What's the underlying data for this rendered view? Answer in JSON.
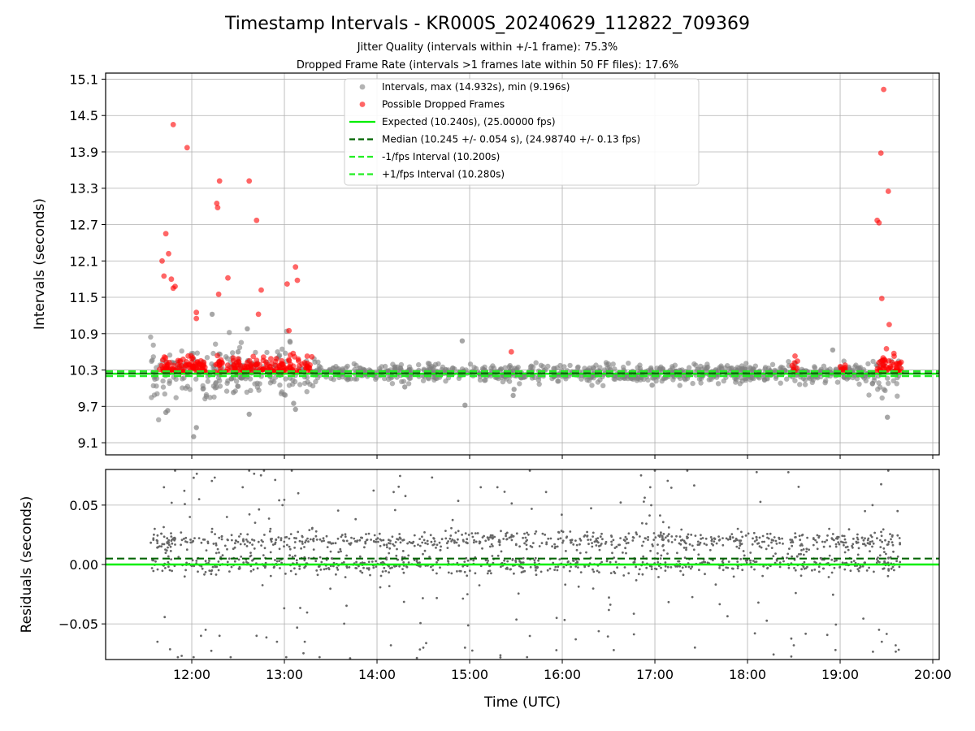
{
  "chart_data": [
    {
      "type": "scatter",
      "title": "Timestamp Intervals - KR000S_20240629_112822_709369",
      "subtitle_1": "Jitter Quality (intervals within +/-1 frame): 75.3%",
      "subtitle_2": "Dropped Frame Rate (intervals >1 frames late within 50 FF files): 17.6%",
      "ylabel": "Intervals (seconds)",
      "xlim_hours": [
        11.07,
        20.07
      ],
      "ylim": [
        8.9,
        15.2
      ],
      "yticks": [
        9.1,
        9.7,
        10.3,
        10.9,
        11.5,
        12.1,
        12.7,
        13.3,
        13.9,
        14.5,
        15.1
      ],
      "ytick_labels": [
        "9.1",
        "9.7",
        "10.3",
        "10.9",
        "11.5",
        "12.1",
        "12.7",
        "13.3",
        "13.9",
        "14.5",
        "15.1"
      ],
      "xticks_hours": [
        12,
        13,
        14,
        15,
        16,
        17,
        18,
        19,
        20
      ],
      "grid": true,
      "legend_position": "top-center",
      "legend": [
        {
          "label": "Intervals, max (14.932s), min (9.196s)",
          "kind": "marker",
          "color": "#808080"
        },
        {
          "label": "Possible Dropped Frames",
          "kind": "marker",
          "color": "#ff0000"
        },
        {
          "label": "Expected (10.240s), (25.00000 fps)",
          "kind": "line",
          "color": "#00ee00",
          "dash": false
        },
        {
          "label": "Median (10.245 +/- 0.054 s), (24.98740 +/- 0.13 fps)",
          "kind": "line",
          "color": "#006400",
          "dash": true
        },
        {
          "label": "-1/fps Interval (10.200s)",
          "kind": "line",
          "color": "#22ee22",
          "dash": true
        },
        {
          "label": "+1/fps Interval (10.280s)",
          "kind": "line",
          "color": "#22ee22",
          "dash": true
        }
      ],
      "reference_lines": {
        "expected": 10.24,
        "median": 10.245,
        "minus_one_fps": 10.2,
        "plus_one_fps": 10.28
      },
      "series": [
        {
          "name": "Possible Dropped Frames",
          "color": "#ff0000",
          "x_hours": [
            11.68,
            11.7,
            11.72,
            11.75,
            11.78,
            11.8,
            11.8,
            11.82,
            11.95,
            12.05,
            12.05,
            12.27,
            12.28,
            12.29,
            12.3,
            12.39,
            12.62,
            12.7,
            12.72,
            12.75,
            13.03,
            13.05,
            13.12,
            13.14,
            15.45,
            19.4,
            19.42,
            19.44,
            19.45,
            19.47,
            19.5,
            19.52,
            19.53
          ],
          "y": [
            12.1,
            11.85,
            12.55,
            12.22,
            11.8,
            14.35,
            11.65,
            11.68,
            13.97,
            11.25,
            11.15,
            13.05,
            12.98,
            11.55,
            13.42,
            11.82,
            13.42,
            12.77,
            11.22,
            11.62,
            11.72,
            10.95,
            12.0,
            11.78,
            10.6,
            12.77,
            12.73,
            13.88,
            11.48,
            14.93,
            10.65,
            13.25,
            11.05
          ]
        },
        {
          "name": "Intervals, max (14.932s), min (9.196s)",
          "color": "#808080",
          "x_hours": [
            11.72,
            11.74,
            12.02,
            12.05,
            12.22,
            12.45,
            12.5,
            12.6,
            12.62,
            13.1,
            13.12,
            14.3,
            14.92,
            14.95,
            15.47,
            15.48,
            16.97,
            18.92,
            19.51
          ],
          "y": [
            9.6,
            9.63,
            9.2,
            9.35,
            11.22,
            9.93,
            10.6,
            10.98,
            9.57,
            9.75,
            9.65,
            10.02,
            10.78,
            9.72,
            9.88,
            9.98,
            10.05,
            10.63,
            9.52
          ]
        }
      ]
    },
    {
      "type": "scatter",
      "ylabel": "Residuals (seconds)",
      "xlabel": "Time (UTC)",
      "xlim_hours": [
        11.07,
        20.07
      ],
      "ylim": [
        -0.08,
        0.08
      ],
      "yticks": [
        -0.05,
        0.0,
        0.05
      ],
      "ytick_labels": [
        "−0.05",
        "0.00",
        "0.05"
      ],
      "xticks_hours": [
        12,
        13,
        14,
        15,
        16,
        17,
        18,
        19,
        20
      ],
      "xtick_labels": [
        "12:00",
        "13:00",
        "14:00",
        "15:00",
        "16:00",
        "17:00",
        "18:00",
        "19:00",
        "20:00"
      ],
      "grid": true,
      "reference_lines": {
        "zero": 0.0,
        "median_offset": 0.005
      },
      "series": [
        {
          "name": "residuals",
          "color": "#666666",
          "x_hours": [
            11.6,
            11.63,
            11.7,
            11.78,
            11.82,
            11.85,
            11.92,
            11.98,
            12.02,
            12.08,
            12.1,
            12.15,
            12.22,
            12.3,
            12.38,
            12.42,
            12.48,
            12.55,
            12.62,
            12.7,
            12.78,
            12.85,
            12.92,
            12.98,
            13.02,
            13.08,
            13.15,
            13.22,
            13.3,
            13.38,
            14.15,
            14.18,
            14.5,
            14.95,
            15.12,
            15.3,
            15.62,
            15.65,
            16.95,
            17.0,
            17.35,
            18.08,
            18.5,
            18.95,
            19.35,
            19.42,
            19.45,
            19.52,
            19.6,
            19.62
          ],
          "y": [
            0.03,
            -0.065,
            0.065,
            0.02,
            0.079,
            -0.078,
            0.062,
            0.04,
            -0.078,
            0.055,
            -0.06,
            -0.055,
            0.03,
            -0.06,
            0.04,
            -0.078,
            0.02,
            0.065,
            0.079,
            -0.06,
            0.079,
            0.03,
            -0.065,
            0.05,
            -0.078,
            0.079,
            0.06,
            -0.065,
            0.03,
            -0.078,
            -0.068,
            0.061,
            -0.07,
            -0.07,
            0.065,
            0.065,
            -0.078,
            0.079,
            0.065,
            0.079,
            0.079,
            -0.058,
            -0.068,
            -0.072,
            0.05,
            -0.055,
            -0.065,
            0.079,
            -0.068,
            0.045
          ]
        }
      ]
    }
  ]
}
